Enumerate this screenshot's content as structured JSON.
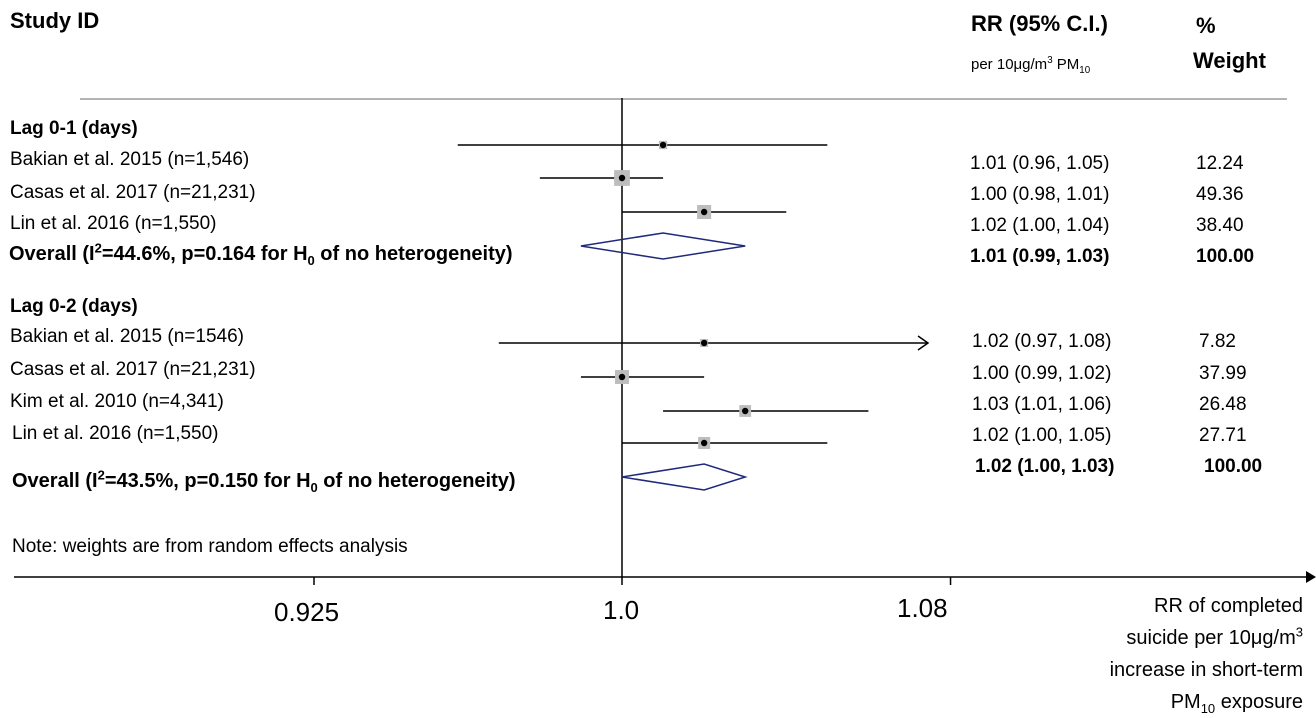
{
  "chart_data": {
    "type": "forest",
    "headers": {
      "study": "Study ID",
      "rr": "RR (95% C.I.)",
      "rr_sub": {
        "pre": "per 10μg/m",
        "sup": "3",
        "mid": " PM",
        "sub": "10"
      },
      "weight_line1": "%",
      "weight_line2": "Weight"
    },
    "x_ticks": [
      {
        "value": 0.925,
        "label": "0.925"
      },
      {
        "value": 1.0,
        "label": "1.0"
      },
      {
        "value": 1.08,
        "label": "1.08"
      }
    ],
    "reference_value": 1.0,
    "xlabel_lines": [
      "RR of completed",
      "suicide per 10μg/m",
      "increase in short-term",
      "PM",
      " exposure"
    ],
    "xlabel_sup": "3",
    "xlabel_sub": "10",
    "note": "Note: weights are from random effects analysis",
    "groups": [
      {
        "label": "Lag 0-1 (days)",
        "studies": [
          {
            "name": "Bakian et al. 2015  (n=1,546)",
            "rr": 1.01,
            "lo": 0.96,
            "hi": 1.05,
            "ci_text": "1.01 (0.96, 1.05)",
            "weight": 12.24,
            "weight_text": "12.24"
          },
          {
            "name": "Casas et al. 2017  (n=21,231)",
            "rr": 1.0,
            "lo": 0.98,
            "hi": 1.01,
            "ci_text": "1.00 (0.98, 1.01)",
            "weight": 49.36,
            "weight_text": "49.36"
          },
          {
            "name": "Lin et al. 2016  (n=1,550)",
            "rr": 1.02,
            "lo": 1.0,
            "hi": 1.04,
            "ci_text": "1.02 (1.00, 1.04)",
            "weight": 38.4,
            "weight_text": "38.40"
          }
        ],
        "overall": {
          "pre": "Overall (I",
          "sup": "2",
          "mid": "=44.6%, p=0.164 for H",
          "sub": "0",
          "post": " of no heterogeneity)",
          "rr": 1.01,
          "lo": 0.99,
          "hi": 1.03,
          "ci_text": "1.01 (0.99, 1.03)",
          "weight_text": "100.00"
        }
      },
      {
        "label": "Lag 0-2 (days)",
        "studies": [
          {
            "name": "Bakian et al. 2015  (n=1546)",
            "rr": 1.02,
            "lo": 0.97,
            "hi": 1.08,
            "ci_text": "1.02 (0.97, 1.08)",
            "weight": 7.82,
            "weight_text": "7.82",
            "truncated_hi": true
          },
          {
            "name": "Casas et al. 2017  (n=21,231)",
            "rr": 1.0,
            "lo": 0.99,
            "hi": 1.02,
            "ci_text": "1.00 (0.99, 1.02)",
            "weight": 37.99,
            "weight_text": "37.99"
          },
          {
            "name": "Kim et al. 2010  (n=4,341)",
            "rr": 1.03,
            "lo": 1.01,
            "hi": 1.06,
            "ci_text": "1.03 (1.01, 1.06)",
            "weight": 26.48,
            "weight_text": "26.48"
          },
          {
            "name": "Lin et al. 2016  (n=1,550)",
            "rr": 1.02,
            "lo": 1.0,
            "hi": 1.05,
            "ci_text": "1.02 (1.00, 1.05)",
            "weight": 27.71,
            "weight_text": "27.71"
          }
        ],
        "overall": {
          "pre": "Overall (I",
          "sup": "2",
          "mid": "=43.5%, p=0.150 for H",
          "sub": "0",
          "post": " of no heterogeneity)",
          "rr": 1.02,
          "lo": 1.0,
          "hi": 1.03,
          "ci_text": "1.02 (1.00, 1.03)",
          "weight_text": "100.00"
        }
      }
    ],
    "colors": {
      "box": "#bdbdbd",
      "diamond": "#1f2a7a",
      "line": "#000000",
      "rule": "#9a9a9a"
    }
  }
}
